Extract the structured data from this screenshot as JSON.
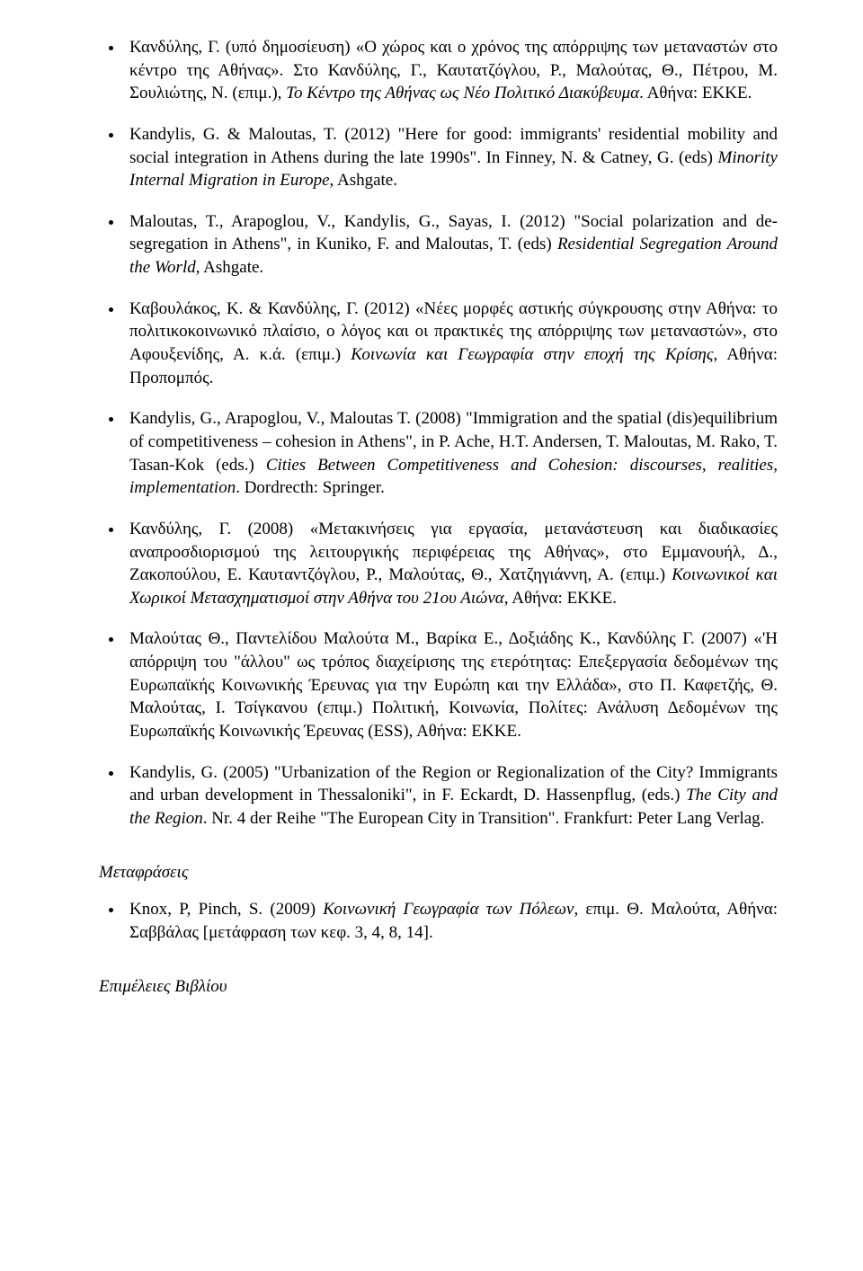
{
  "refs": [
    "Κανδύλης, Γ. (υπό δημοσίευση) «Ο χώρος και ο χρόνος της απόρριψης των μεταναστών στο κέντρο της Αθήνας». Στο Κανδύλης, Γ., Καυτατζόγλου, Ρ., Μαλούτας, Θ., Πέτρου, Μ. Σουλιώτης, Ν. (επιμ.), <i>Το Κέντρο της Αθήνας ως Νέο Πολιτικό Διακύβευμα</i>. Αθήνα: ΕΚΚΕ.",
    "Kandylis, G. & Maloutas, T. (2012) \"Here for good: immigrants' residential mobility and social integration in Athens during the late 1990s\". In Finney, N. & Catney, G. (eds) <i>Minority Internal Migration in Europe</i>, Ashgate.",
    "Maloutas, T., Arapoglou, V., Kandylis, G., Sayas, I. (2012) \"Social polarization and de-segregation in Athens\", in Kuniko, F. and Maloutas, T. (eds) <i>Residential Segregation Around the World</i>, Ashgate.",
    "Καβουλάκος, Κ. & Κανδύλης, Γ. (2012) «Νέες μορφές αστικής σύγκρουσης στην Αθήνα: το πολιτικοκοινωνικό πλαίσιο, ο λόγος και οι πρακτικές της απόρριψης των μεταναστών», στο Αφουξενίδης, Α. κ.ά. (επιμ.) <i>Κοινωνία και Γεωγραφία στην εποχή της Κρίσης</i>, Αθήνα: Προπομπός.",
    "Kandylis, G., Arapoglou, V., Maloutas T. (2008) \"Immigration and the spatial (dis)equilibrium of competitiveness – cohesion in Athens\", in P. Ache, H.T. Andersen, T. Maloutas, M. Rako, T. Tasan-Kok (eds.) <i>Cities Between Competitiveness and Cohesion: discourses, realities, implementation</i>. Dordrecth: Springer.",
    "Κανδύλης, Γ. (2008) «Μετακινήσεις για εργασία, μετανάστευση και διαδικασίες αναπροσδιορισμού της λειτουργικής περιφέρειας της Αθήνας», στο Εμμανουήλ, Δ., Ζακοπούλου, Ε. Καυταντζόγλου, Ρ., Μαλούτας, Θ., Χατζηγιάννη, Α. (επιμ.) <i>Κοινωνικοί και Χωρικοί Μετασχηματισμοί στην Αθήνα του 21ου Αιώνα</i>, Αθήνα: ΕΚΚΕ.",
    "Μαλούτας Θ., Παντελίδου Μαλούτα Μ., Βαρίκα Ε., Δοξιάδης Κ., Κανδύλης Γ. (2007) «'Η απόρριψη του \"άλλου\" ως τρόπος διαχείρισης της ετερότητας: Επεξεργασία δεδομένων της Ευρωπαϊκής Κοινωνικής Έρευνας για την Ευρώπη και την Ελλάδα», στο Π. Καφετζής, Θ. Μαλούτας, Ι. Τσίγκανου (επιμ.) Πολιτική, Κοινωνία, Πολίτες: Ανάλυση Δεδομένων της Ευρωπαϊκής Κοινωνικής Έρευνας (ESS), Αθήνα: ΕΚΚΕ.",
    "Kandylis, G. (2005) \"Urbanization of the Region or Regionalization of the City? Immigrants and urban development in Thessaloniki\", in F. Eckardt, D. Hassenpflug, (eds.) <i>The City and the Region</i>. Nr. 4 der Reihe \"The European City in Transition\". Frankfurt: Peter Lang Verlag."
  ],
  "heading_translations": "Μεταφράσεις",
  "translation_refs": [
    "Knox, P, Pinch, S. (2009) <i>Κοινωνική Γεωγραφία των Πόλεων</i>, επιμ. Θ. Μαλούτα, Αθήνα: Σαββάλας [μετάφραση των κεφ. 3, 4, 8, 14]."
  ],
  "heading_editions": "Επιμέλειες Βιβλίου"
}
